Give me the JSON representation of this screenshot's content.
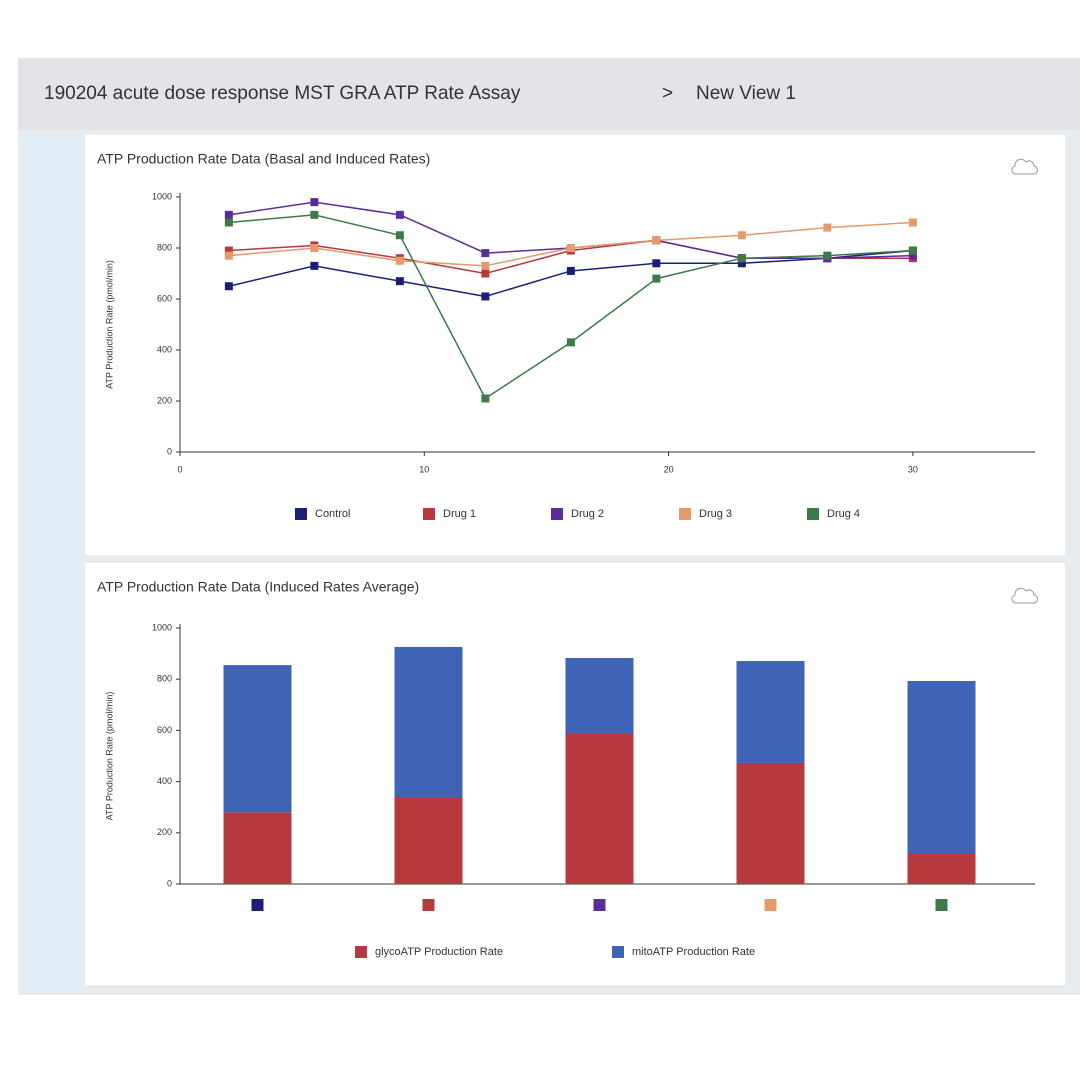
{
  "header": {
    "title": "190204 acute dose response MST GRA ATP Rate Assay",
    "separator": ">",
    "view": "New View 1"
  },
  "chart_data": [
    {
      "type": "line",
      "title": "ATP Production Rate Data (Basal and Induced Rates)",
      "ylabel": "ATP Production Rate (pmol/min)",
      "x": [
        2,
        5.5,
        9,
        12.5,
        16,
        19.5,
        23,
        26.5,
        30
      ],
      "xlim": [
        0,
        35
      ],
      "xticks": [
        0,
        10,
        20,
        30
      ],
      "ylim": [
        0,
        1000
      ],
      "yticks": [
        0,
        200,
        400,
        600,
        800,
        1000
      ],
      "series": [
        {
          "name": "Control",
          "color": "#1b1f7a",
          "values": [
            650,
            730,
            670,
            610,
            710,
            740,
            740,
            760,
            790
          ]
        },
        {
          "name": "Drug 1",
          "color": "#b5393d",
          "values": [
            790,
            810,
            760,
            700,
            790,
            830,
            760,
            760,
            760
          ]
        },
        {
          "name": "Drug 2",
          "color": "#5b2d9c",
          "values": [
            930,
            980,
            930,
            780,
            800,
            830,
            760,
            760,
            770
          ]
        },
        {
          "name": "Drug 3",
          "color": "#e39a6c",
          "values": [
            770,
            800,
            750,
            730,
            800,
            830,
            850,
            880,
            900
          ]
        },
        {
          "name": "Drug 4",
          "color": "#3d7a4a",
          "values": [
            900,
            930,
            850,
            210,
            430,
            680,
            760,
            770,
            790
          ]
        }
      ]
    },
    {
      "type": "stacked_bar",
      "title": "ATP Production Rate Data (Induced Rates Average)",
      "ylabel": "ATP Production Rate (pmol/min)",
      "categories": [
        null,
        null,
        null,
        null,
        null
      ],
      "category_colors": [
        "#1b1f7a",
        "#b5393d",
        "#5b2d9c",
        "#e39a6c",
        "#3d7a4a"
      ],
      "ylim": [
        0,
        1000
      ],
      "yticks": [
        0,
        200,
        400,
        600,
        800,
        1000
      ],
      "series": [
        {
          "name": "glycoATP Production Rate",
          "color": "#b5393d",
          "values": [
            280,
            340,
            590,
            473,
            121
          ]
        },
        {
          "name": "mitoATP Production Rate",
          "color": "#3f63b5",
          "values": [
            575,
            586,
            293,
            398,
            672
          ]
        }
      ]
    }
  ]
}
